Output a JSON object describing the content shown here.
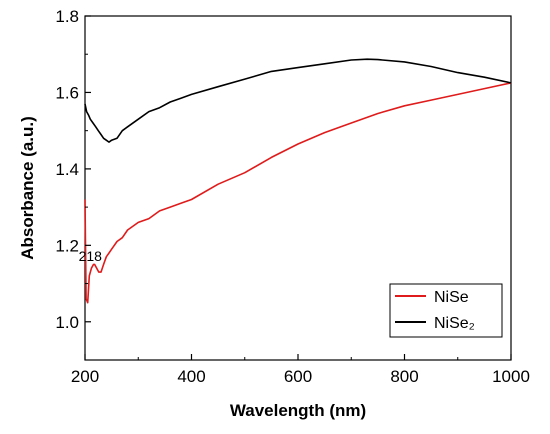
{
  "chart_data": {
    "type": "line",
    "title": "",
    "xlabel": "Wavelength (nm)",
    "ylabel": "Absorbance (a.u.)",
    "xlim": [
      200,
      1000
    ],
    "ylim": [
      0.9,
      1.8
    ],
    "xticks": [
      200,
      400,
      600,
      800,
      1000
    ],
    "yticks": [
      1.0,
      1.2,
      1.4,
      1.6,
      1.8
    ],
    "xtick_labels": [
      "200",
      "400",
      "600",
      "800",
      "1000"
    ],
    "ytick_labels": [
      "1.0",
      "1.2",
      "1.4",
      "1.6",
      "1.8"
    ],
    "grid": false,
    "legend_position": "bottom-right",
    "annotations": [
      {
        "text": "218",
        "x": 218,
        "y": 1.19
      }
    ],
    "series": [
      {
        "name": "NiSe",
        "color": "#e01b1b",
        "x": [
          200,
          202,
          205,
          208,
          212,
          216,
          218,
          222,
          226,
          230,
          235,
          240,
          245,
          250,
          260,
          270,
          280,
          300,
          320,
          340,
          360,
          380,
          400,
          450,
          500,
          550,
          600,
          650,
          700,
          750,
          800,
          850,
          900,
          950,
          1000
        ],
        "y": [
          1.32,
          1.06,
          1.05,
          1.12,
          1.14,
          1.15,
          1.15,
          1.14,
          1.13,
          1.13,
          1.15,
          1.17,
          1.18,
          1.19,
          1.21,
          1.22,
          1.24,
          1.26,
          1.27,
          1.29,
          1.3,
          1.31,
          1.32,
          1.36,
          1.39,
          1.43,
          1.465,
          1.495,
          1.52,
          1.545,
          1.565,
          1.58,
          1.595,
          1.61,
          1.625
        ]
      },
      {
        "name": "NiSe₂",
        "color": "#000000",
        "x": [
          200,
          203,
          207,
          210,
          215,
          220,
          225,
          230,
          235,
          240,
          245,
          250,
          260,
          270,
          280,
          300,
          320,
          340,
          360,
          380,
          400,
          450,
          500,
          550,
          600,
          650,
          700,
          730,
          750,
          800,
          850,
          900,
          950,
          1000
        ],
        "y": [
          1.57,
          1.55,
          1.54,
          1.53,
          1.52,
          1.51,
          1.5,
          1.49,
          1.48,
          1.475,
          1.47,
          1.475,
          1.48,
          1.5,
          1.51,
          1.53,
          1.55,
          1.56,
          1.575,
          1.585,
          1.595,
          1.615,
          1.635,
          1.655,
          1.665,
          1.675,
          1.685,
          1.687,
          1.686,
          1.68,
          1.668,
          1.652,
          1.64,
          1.625
        ]
      }
    ]
  }
}
